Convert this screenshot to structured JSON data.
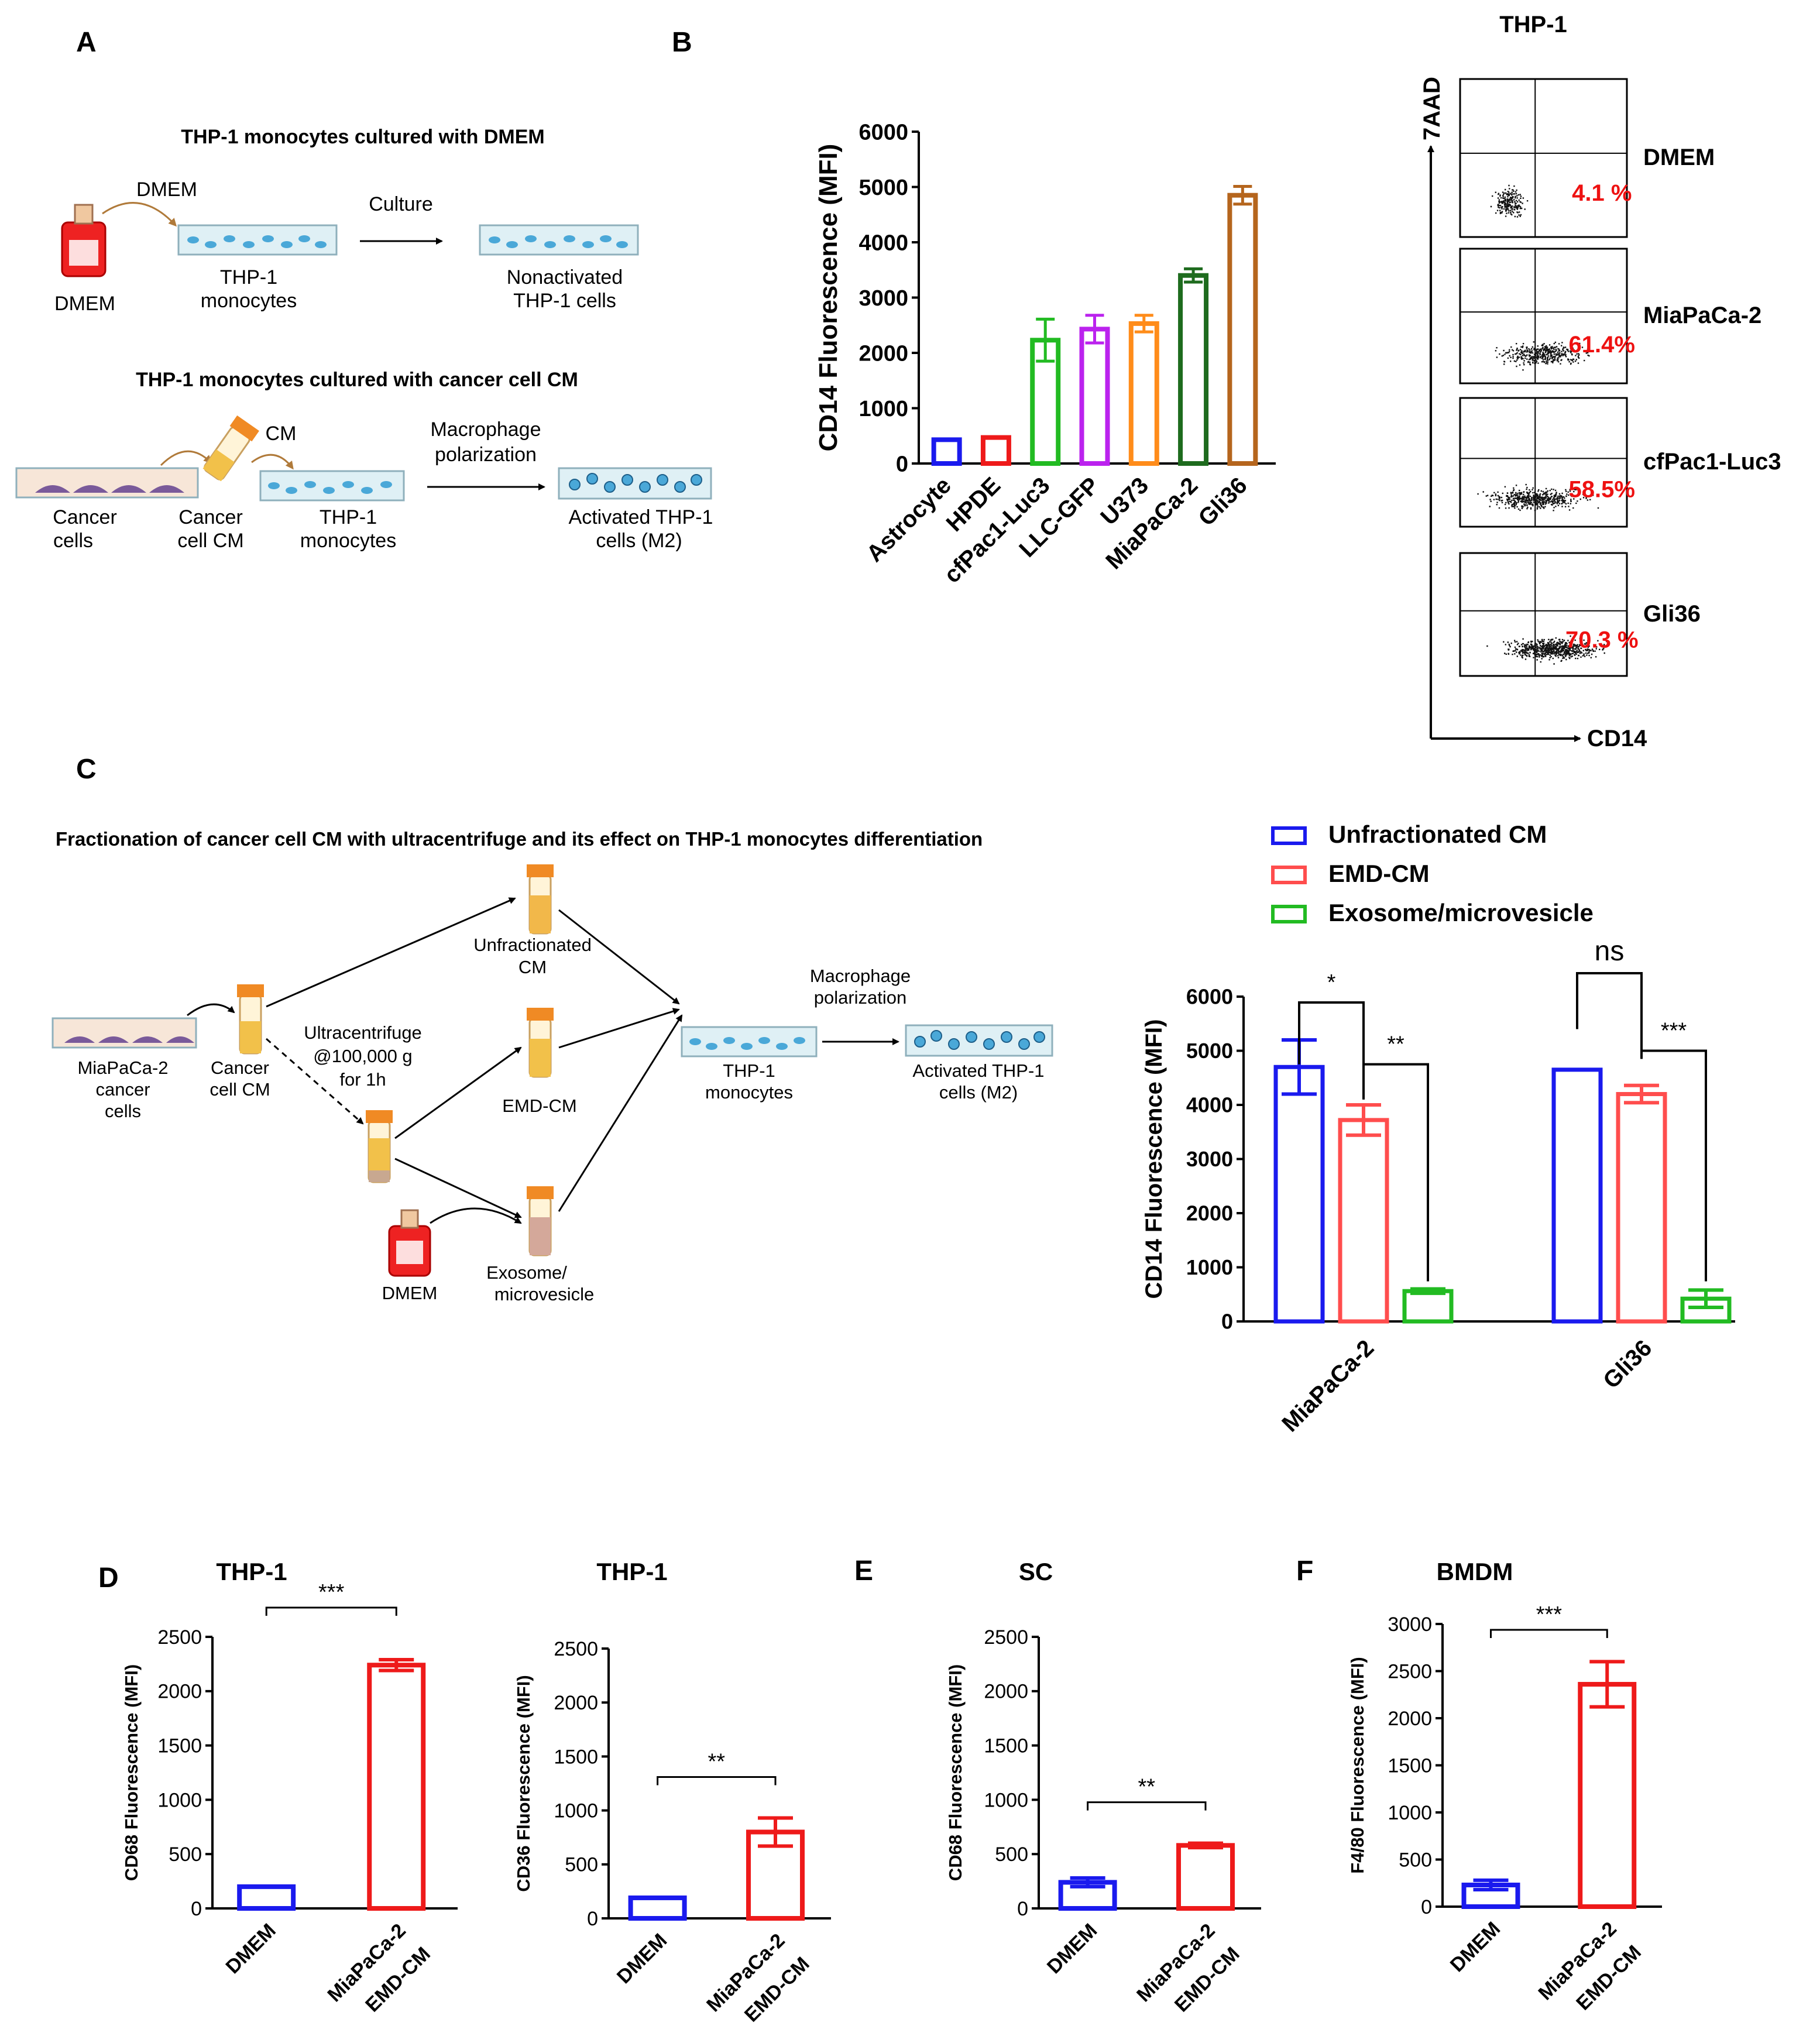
{
  "panel_labels": {
    "A": "A",
    "B": "B",
    "C": "C",
    "D": "D",
    "E": "E",
    "F": "F"
  },
  "colors": {
    "blue": "#1a1aee",
    "red": "#ee1a1a",
    "green": "#22bb22",
    "purple": "#bb22ee",
    "orange": "#ff8c1a",
    "darkgreen": "#1e6b1e",
    "brown": "#b5651d",
    "redsoft": "#ff4d4d",
    "flowpct": "#ee1111",
    "dish": "#dff0f5",
    "cell": "#4aa8d8",
    "cancer": "#7a5a9a"
  },
  "panelA": {
    "title1": "THP-1 monocytes cultured with DMEM",
    "dmem_arrow": "DMEM",
    "culture": "Culture",
    "flask_label": "DMEM",
    "thp1_line1": "THP-1",
    "thp1_line2": "monocytes",
    "nonact_line1": "Nonactivated",
    "nonact_line2": "THP-1 cells",
    "title2": "THP-1 monocytes cultured with cancer cell CM",
    "cm": "CM",
    "macro_line1": "Macrophage",
    "macro_line2": "polarization",
    "cancer_line1": "Cancer",
    "cancer_line2": "cells",
    "cancercm_line1": "Cancer",
    "cancercm_line2": "cell CM",
    "act_line1": "Activated THP-1",
    "act_line2": "cells (M2)"
  },
  "panelB_flow": {
    "title": "THP-1",
    "y_axis": "7AAD",
    "x_axis": "CD14",
    "plots": [
      {
        "name": "DMEM",
        "pct": "4.1 %"
      },
      {
        "name": "MiaPaCa-2",
        "pct": "61.4%"
      },
      {
        "name": "cfPac1-Luc3",
        "pct": "58.5%"
      },
      {
        "name": "Gli36",
        "pct": "70.3 %"
      }
    ]
  },
  "panelC": {
    "title": "Fractionation of cancer cell CM with ultracentrifuge and its effect on THP-1 monocytes differentiation",
    "mia_line1": "MiaPaCa-2",
    "mia_line2": "cancer",
    "mia_line3": "cells",
    "ccm_line1": "Cancer",
    "ccm_line2": "cell CM",
    "ultra_line1": "Ultracentrifuge",
    "ultra_line2": "@100,000 g",
    "ultra_line3": "for 1h",
    "unfrac_line1": "Unfractionated",
    "unfrac_line2": "CM",
    "emd": "EMD-CM",
    "exo_line1": "Exosome/",
    "exo_line2": "microvesicle",
    "dmem": "DMEM",
    "thp_line1": "THP-1",
    "thp_line2": "monocytes",
    "macro_line1": "Macrophage",
    "macro_line2": "polarization",
    "act_line1": "Activated THP-1",
    "act_line2": "cells (M2)"
  },
  "chart_data": [
    {
      "id": "B",
      "type": "bar",
      "title": "",
      "ylabel": "CD14 Fluorescence (MFI)",
      "xlabel": "",
      "ylim": [
        0,
        6000
      ],
      "yticks": [
        0,
        1000,
        2000,
        3000,
        4000,
        5000,
        6000
      ],
      "categories": [
        "Astrocyte",
        "HPDE",
        "cfPac1-Luc3",
        "LLC-GFP",
        "U373",
        "MiaPaCa-2",
        "Gli36"
      ],
      "values": [
        430,
        470,
        2230,
        2430,
        2530,
        3400,
        4850
      ],
      "errors": [
        0,
        0,
        380,
        250,
        150,
        120,
        160
      ],
      "colors": [
        "#1a1aee",
        "#ee1a1a",
        "#22bb22",
        "#bb22ee",
        "#ff8c1a",
        "#1e6b1e",
        "#b5651d"
      ]
    },
    {
      "id": "C",
      "type": "bar",
      "ylabel": "CD14 Fluorescence (MFI)",
      "ylim": [
        0,
        6000
      ],
      "yticks": [
        0,
        1000,
        2000,
        3000,
        4000,
        5000,
        6000
      ],
      "categories": [
        "MiaPaCa-2",
        "Gli36"
      ],
      "series": [
        {
          "name": "Unfractionated CM",
          "values": [
            4700,
            4650
          ],
          "errors": [
            500,
            0
          ],
          "color": "#1a1aee"
        },
        {
          "name": "EMD-CM",
          "values": [
            3720,
            4200
          ],
          "errors": [
            280,
            160
          ],
          "color": "#ff4d4d"
        },
        {
          "name": "Exosome/microvesicle",
          "values": [
            560,
            420
          ],
          "errors": [
            40,
            160
          ],
          "color": "#22bb22"
        }
      ],
      "annotations": [
        "*",
        "**",
        "ns",
        "***"
      ]
    },
    {
      "id": "D1",
      "type": "bar",
      "title": "THP-1",
      "ylabel": "CD68 Fluorescence (MFI)",
      "ylim": [
        0,
        2500
      ],
      "yticks": [
        0,
        500,
        1000,
        1500,
        2000,
        2500
      ],
      "categories": [
        "DMEM",
        "MiaPaCa-2 EMD-CM"
      ],
      "values": [
        200,
        2240
      ],
      "errors": [
        0,
        50
      ],
      "colors": [
        "#1a1aee",
        "#ee1a1a"
      ],
      "significance": "***"
    },
    {
      "id": "D2",
      "type": "bar",
      "title": "THP-1",
      "ylabel": "CD36 Fluorescence (MFI)",
      "ylim": [
        0,
        2500
      ],
      "yticks": [
        0,
        500,
        1000,
        1500,
        2000,
        2500
      ],
      "categories": [
        "DMEM",
        "MiaPaCa-2 EMD-CM"
      ],
      "values": [
        190,
        800
      ],
      "errors": [
        0,
        130
      ],
      "colors": [
        "#1a1aee",
        "#ee1a1a"
      ],
      "significance": "**"
    },
    {
      "id": "E",
      "type": "bar",
      "title": "SC",
      "ylabel": "CD68 Fluorescence (MFI)",
      "ylim": [
        0,
        2500
      ],
      "yticks": [
        0,
        500,
        1000,
        1500,
        2000,
        2500
      ],
      "categories": [
        "DMEM",
        "MiaPaCa-2 EMD-CM"
      ],
      "values": [
        240,
        580
      ],
      "errors": [
        40,
        20
      ],
      "colors": [
        "#1a1aee",
        "#ee1a1a"
      ],
      "significance": "**"
    },
    {
      "id": "F",
      "type": "bar",
      "title": "BMDM",
      "ylabel": "F4/80 Fluorescence (MFI)",
      "ylim": [
        0,
        3000
      ],
      "yticks": [
        0,
        500,
        1000,
        1500,
        2000,
        2500,
        3000
      ],
      "categories": [
        "DMEM",
        "MiaPaCa-2 EMD-CM"
      ],
      "values": [
        230,
        2360
      ],
      "errors": [
        50,
        240
      ],
      "colors": [
        "#1a1aee",
        "#ee1a1a"
      ],
      "significance": "***"
    }
  ]
}
